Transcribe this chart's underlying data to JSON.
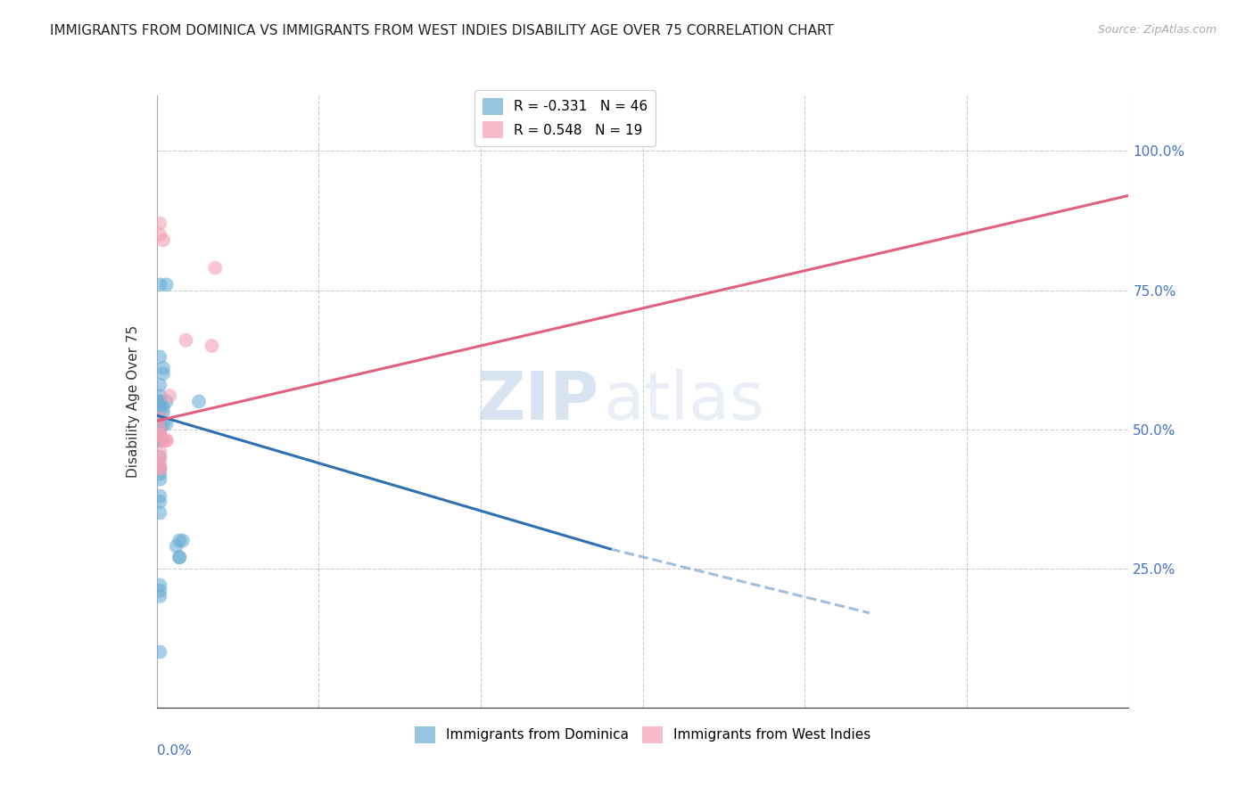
{
  "title": "IMMIGRANTS FROM DOMINICA VS IMMIGRANTS FROM WEST INDIES DISABILITY AGE OVER 75 CORRELATION CHART",
  "source": "Source: ZipAtlas.com",
  "ylabel": "Disability Age Over 75",
  "legend_blue_r": "R = -0.331",
  "legend_blue_n": "N = 46",
  "legend_pink_r": "R = 0.548",
  "legend_pink_n": "N = 19",
  "legend_blue_label": "Immigrants from Dominica",
  "legend_pink_label": "Immigrants from West Indies",
  "blue_color": "#6baed6",
  "pink_color": "#f4a0b5",
  "blue_line_color": "#3070b0",
  "pink_line_color": "#e06080",
  "watermark_zip": "ZIP",
  "watermark_atlas": "atlas",
  "blue_scatter_x": [
    0.001,
    0.003,
    0.001,
    0.002,
    0.002,
    0.001,
    0.001,
    0.001,
    0.001,
    0.001,
    0.002,
    0.002,
    0.001,
    0.001,
    0.001,
    0.002,
    0.003,
    0.001,
    0.001,
    0.001,
    0.001,
    0.001,
    0.001,
    0.001,
    0.001,
    0.001,
    0.003,
    0.001,
    0.001,
    0.001,
    0.001,
    0.001,
    0.001,
    0.006,
    0.007,
    0.007,
    0.008,
    0.007,
    0.013,
    0.001,
    0.001,
    0.001,
    0.001,
    0.001,
    0.001,
    0.001
  ],
  "blue_scatter_y": [
    0.76,
    0.76,
    0.63,
    0.61,
    0.6,
    0.58,
    0.56,
    0.55,
    0.55,
    0.54,
    0.54,
    0.53,
    0.52,
    0.52,
    0.51,
    0.51,
    0.51,
    0.5,
    0.5,
    0.5,
    0.5,
    0.5,
    0.49,
    0.49,
    0.48,
    0.48,
    0.55,
    0.45,
    0.43,
    0.43,
    0.42,
    0.41,
    0.35,
    0.29,
    0.27,
    0.27,
    0.3,
    0.3,
    0.55,
    0.38,
    0.37,
    0.22,
    0.21,
    0.2,
    0.1,
    0.48
  ],
  "pink_scatter_x": [
    0.001,
    0.001,
    0.002,
    0.001,
    0.001,
    0.001,
    0.001,
    0.002,
    0.003,
    0.003,
    0.004,
    0.001,
    0.001,
    0.001,
    0.018,
    0.017,
    0.009,
    0.001,
    0.001
  ],
  "pink_scatter_y": [
    0.87,
    0.85,
    0.84,
    0.52,
    0.5,
    0.49,
    0.49,
    0.48,
    0.48,
    0.48,
    0.56,
    0.46,
    0.43,
    0.43,
    0.79,
    0.65,
    0.66,
    0.45,
    0.44
  ],
  "xlim": [
    0.0,
    0.3
  ],
  "ylim": [
    0.0,
    1.1
  ],
  "blue_trend_x1": 0.0,
  "blue_trend_x2": 0.14,
  "blue_trend_y1": 0.525,
  "blue_trend_y2": 0.285,
  "blue_trend_ext_x2": 0.22,
  "blue_trend_ext_y2": 0.17,
  "pink_trend_x1": 0.0,
  "pink_trend_x2": 0.3,
  "pink_trend_y1": 0.515,
  "pink_trend_y2": 0.92
}
